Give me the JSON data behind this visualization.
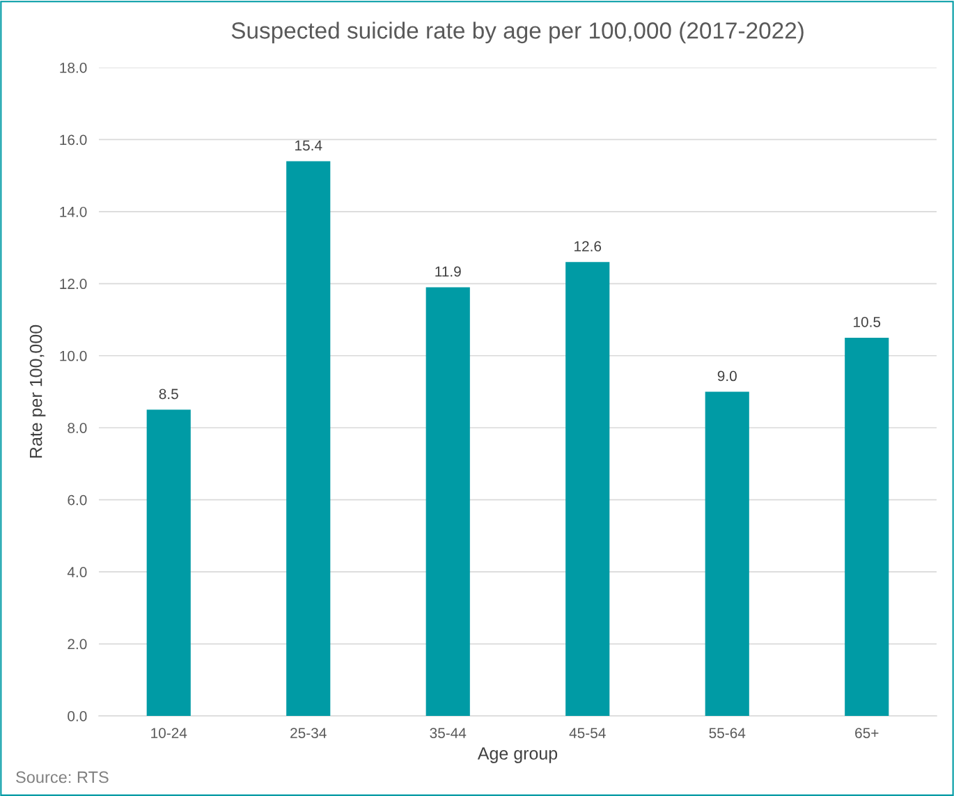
{
  "chart_data": {
    "type": "bar",
    "title": "Suspected suicide rate by age per 100,000 (2017-2022)",
    "xlabel": "Age group",
    "ylabel": "Rate per 100,000",
    "categories": [
      "10-24",
      "25-34",
      "35-44",
      "45-54",
      "55-64",
      "65+"
    ],
    "values": [
      8.5,
      15.4,
      11.9,
      12.6,
      9.0,
      10.5
    ],
    "value_labels": [
      "8.5",
      "15.4",
      "11.9",
      "12.6",
      "9.0",
      "10.5"
    ],
    "color": "#009ba5",
    "ylim": [
      0,
      18
    ],
    "yticks": [
      {
        "value": 0,
        "label": "0.0"
      },
      {
        "value": 2,
        "label": "2.0"
      },
      {
        "value": 4,
        "label": "4.0"
      },
      {
        "value": 6,
        "label": "6.0"
      },
      {
        "value": 8,
        "label": "8.0"
      },
      {
        "value": 10,
        "label": "10.0"
      },
      {
        "value": 12,
        "label": "12.0"
      },
      {
        "value": 14,
        "label": "14.0"
      },
      {
        "value": 16,
        "label": "16.0"
      },
      {
        "value": 18,
        "label": "18.0"
      }
    ],
    "grid": "y",
    "annotations": [
      "Source: RTS"
    ]
  }
}
